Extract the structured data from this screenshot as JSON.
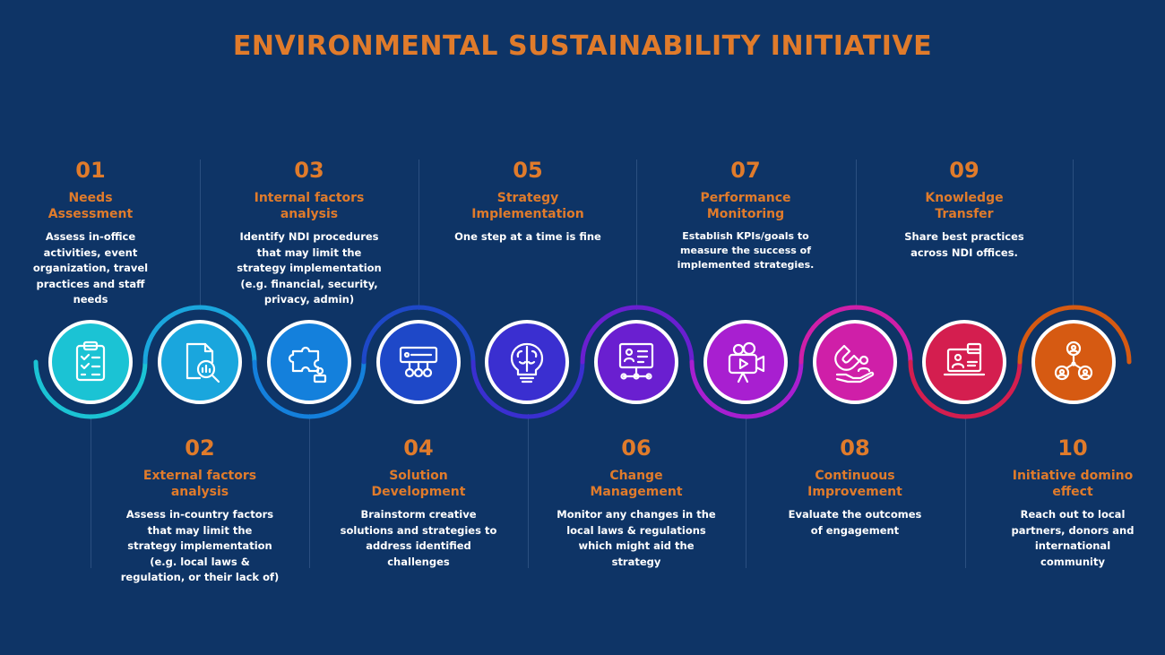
{
  "title": "ENVIRONMENTAL SUSTAINABILITY INITIATIVE",
  "steps": [
    {
      "num": "01",
      "title": "Needs\nAssessment",
      "desc": "Assess in-office\nactivities, event\norganization, travel\npractices and staff\nneeds",
      "color": "#1bc3d4",
      "icon": "clipboard-checklist-icon"
    },
    {
      "num": "02",
      "title": "External factors\nanalysis",
      "desc": "Assess in-country factors\nthat may limit the\nstrategy implementation\n(e.g. local laws &\nregulation, or their lack of)",
      "color": "#1aa6dd",
      "icon": "document-magnifier-icon"
    },
    {
      "num": "03",
      "title": "Internal factors\nanalysis",
      "desc": "Identify NDI procedures\nthat may limit the\nstrategy implementation\n(e.g. financial, security,\nprivacy, admin)",
      "color": "#1480dc",
      "icon": "puzzle-person-icon"
    },
    {
      "num": "04",
      "title": "Solution\nDevelopment",
      "desc": "Brainstorm creative\nsolutions and strategies to\naddress identified\nchallenges",
      "color": "#1e48c8",
      "icon": "network-panel-icon"
    },
    {
      "num": "05",
      "title": "Strategy\nImplementation",
      "desc": "One step at a time is fine",
      "color": "#3a2fd0",
      "icon": "brain-bulb-icon"
    },
    {
      "num": "06",
      "title": "Change\nManagement",
      "desc": "Monitor any changes in the\nlocal laws & regulations\nwhich might aid the\nstrategy",
      "color": "#6a1fd0",
      "icon": "presentation-board-icon"
    },
    {
      "num": "07",
      "title": "Performance\nMonitoring",
      "desc": "Establish KPIs/goals to\nmeasure the success of\nimplemented strategies.",
      "color": "#a81fd0",
      "icon": "video-camera-icon"
    },
    {
      "num": "08",
      "title": "Continuous\nImprovement",
      "desc": "Evaluate the outcomes\nof  engagement",
      "color": "#cf1fa8",
      "icon": "magnet-hand-icon"
    },
    {
      "num": "09",
      "title": "Knowledge\nTransfer",
      "desc": "Share best practices\nacross NDI offices.",
      "color": "#d41e4f",
      "icon": "laptop-user-icon"
    },
    {
      "num": "10",
      "title": "Initiative domino\neffect",
      "desc": "Reach out to local\npartners, donors and\ninternational\ncommunity",
      "color": "#d65a12",
      "icon": "network-people-icon"
    }
  ]
}
